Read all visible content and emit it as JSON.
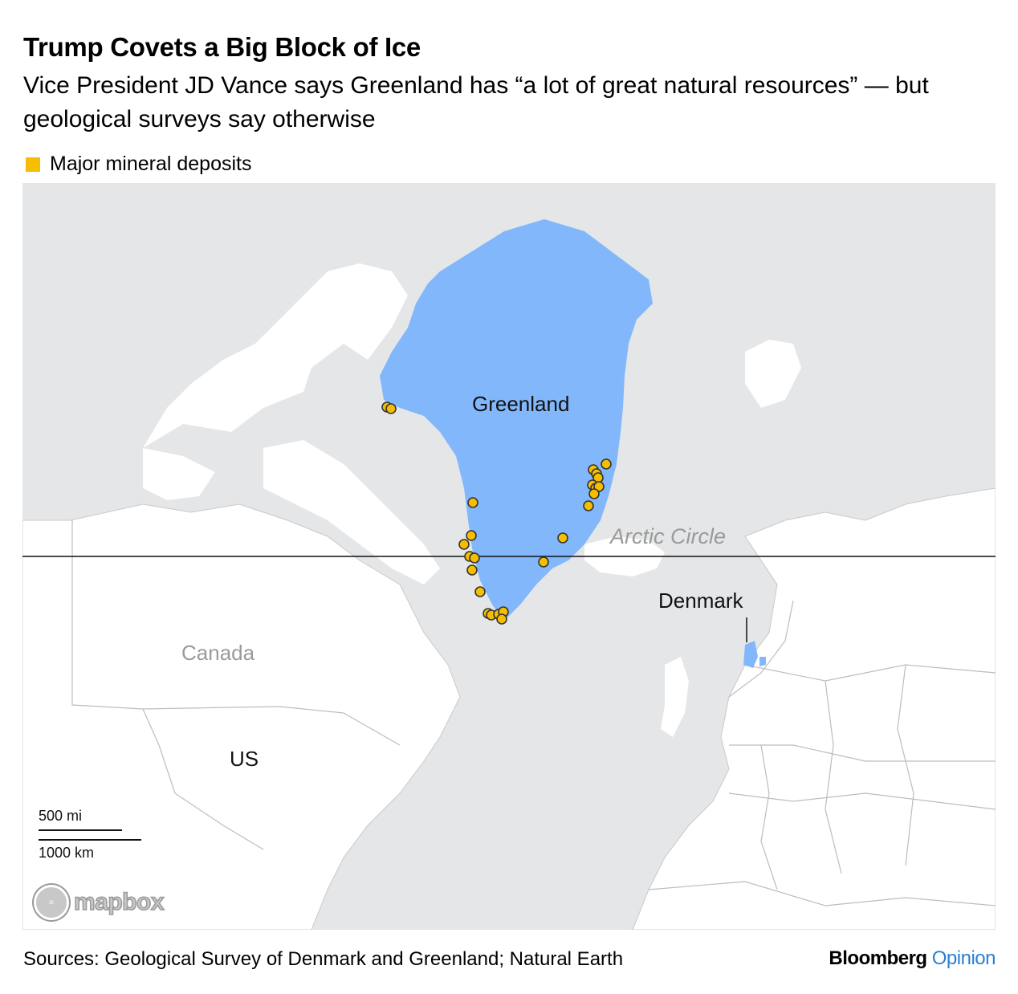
{
  "header": {
    "title": "Trump Covets a Big Block of Ice",
    "subtitle": "Vice President JD Vance says Greenland has “a lot of great natural resources” — but geological surveys say otherwise"
  },
  "legend": {
    "label": "Major mineral deposits",
    "color": "#f6be00"
  },
  "colors": {
    "ocean": "#e5e6e8",
    "land": "#ffffff",
    "highlight": "#82b8fb",
    "deposit": "#f6be00",
    "border": "#b7b7b7"
  },
  "map": {
    "labels": {
      "greenland": "Greenland",
      "arctic_circle": "Arctic Circle",
      "denmark": "Denmark",
      "canada": "Canada",
      "us": "US"
    },
    "scale": {
      "miles": "500 mi",
      "km": "1000 km"
    },
    "attribution": "mapbox"
  },
  "footer": {
    "source": "Sources: Geological Survey of Denmark and Greenland; Natural Earth",
    "brand_main": "Bloomberg",
    "brand_accent": "Opinion"
  }
}
